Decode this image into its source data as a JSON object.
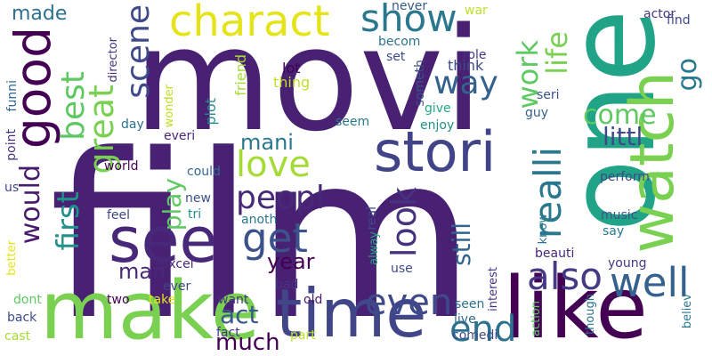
{
  "words": [
    {
      "text": "film",
      "color": "#482173",
      "rotate": 0
    },
    {
      "text": "movi",
      "color": "#482173",
      "rotate": 0
    },
    {
      "text": "one",
      "color": "#20a386",
      "rotate": 90
    },
    {
      "text": "like",
      "color": "#440154",
      "rotate": 0
    },
    {
      "text": "make",
      "color": "#7ad151",
      "rotate": 0
    },
    {
      "text": "time",
      "color": "#404688",
      "rotate": 0
    },
    {
      "text": "see",
      "color": "#482878",
      "rotate": 0
    },
    {
      "text": "watch",
      "color": "#7ad151",
      "rotate": 90
    },
    {
      "text": "good",
      "color": "#440154",
      "rotate": 90
    },
    {
      "text": "stori",
      "color": "#414487",
      "rotate": 0
    },
    {
      "text": "charact",
      "color": "#e5e419",
      "rotate": 0
    },
    {
      "text": "show",
      "color": "#2a788e",
      "rotate": 0
    },
    {
      "text": "love",
      "color": "#a5db36",
      "rotate": 0
    },
    {
      "text": "get",
      "color": "#3b528b",
      "rotate": 0
    },
    {
      "text": "peopl",
      "color": "#482878",
      "rotate": 0
    },
    {
      "text": "even",
      "color": "#3e4a89",
      "rotate": 0
    },
    {
      "text": "great",
      "color": "#7ad151",
      "rotate": 90
    },
    {
      "text": "realli",
      "color": "#2a788e",
      "rotate": 90
    },
    {
      "text": "well",
      "color": "#34618d",
      "rotate": 0
    },
    {
      "text": "also",
      "color": "#443983",
      "rotate": 0
    },
    {
      "text": "would",
      "color": "#481b6d",
      "rotate": 90
    },
    {
      "text": "first",
      "color": "#21918c",
      "rotate": 90
    },
    {
      "text": "look",
      "color": "#46337e",
      "rotate": 90
    },
    {
      "text": "end",
      "color": "#2c728e",
      "rotate": 0
    },
    {
      "text": "come",
      "color": "#5ec962",
      "rotate": 0
    },
    {
      "text": "way",
      "color": "#34618d",
      "rotate": 0
    },
    {
      "text": "scene",
      "color": "#3e4a89",
      "rotate": 90
    },
    {
      "text": "best",
      "color": "#5ec962",
      "rotate": 90
    },
    {
      "text": "work",
      "color": "#5ec962",
      "rotate": 90
    },
    {
      "text": "life",
      "color": "#7ad151",
      "rotate": 90
    },
    {
      "text": "go",
      "color": "#2a788e",
      "rotate": 90
    },
    {
      "text": "play",
      "color": "#5ec962",
      "rotate": 90
    },
    {
      "text": "act",
      "color": "#38598c",
      "rotate": 0
    },
    {
      "text": "much",
      "color": "#440154",
      "rotate": 0
    },
    {
      "text": "year",
      "color": "#440154",
      "rotate": 0
    },
    {
      "text": "man",
      "color": "#482878",
      "rotate": 0
    },
    {
      "text": "mani",
      "color": "#2a788e",
      "rotate": 0
    },
    {
      "text": "littl",
      "color": "#3e4a89",
      "rotate": 0
    },
    {
      "text": "still",
      "color": "#32658e",
      "rotate": 90
    },
    {
      "text": "made",
      "color": "#2c728e",
      "rotate": 0
    },
    {
      "text": "think",
      "color": "#3e4a89",
      "rotate": 0
    },
    {
      "text": "lot",
      "color": "#440154",
      "rotate": 0
    },
    {
      "text": "plot",
      "color": "#23888e",
      "rotate": 90
    },
    {
      "text": "thing",
      "color": "#bddf26",
      "rotate": 0
    },
    {
      "text": "friend",
      "color": "#a5db36",
      "rotate": 90
    },
    {
      "text": "never",
      "color": "#38598c",
      "rotate": 0
    },
    {
      "text": "war",
      "color": "#bddf26",
      "rotate": 0
    },
    {
      "text": "becom",
      "color": "#2c728e",
      "rotate": 0
    },
    {
      "text": "set",
      "color": "#3e4a89",
      "rotate": 0
    },
    {
      "text": "role",
      "color": "#453781",
      "rotate": 0
    },
    {
      "text": "someth",
      "color": "#3b528b",
      "rotate": 90
    },
    {
      "text": "give",
      "color": "#22a884",
      "rotate": 0
    },
    {
      "text": "enjoy",
      "color": "#21918c",
      "rotate": 0
    },
    {
      "text": "seem",
      "color": "#2a788e",
      "rotate": 0
    },
    {
      "text": "guy",
      "color": "#34618d",
      "rotate": 0
    },
    {
      "text": "seri",
      "color": "#3b528b",
      "rotate": 0
    },
    {
      "text": "actor",
      "color": "#453781",
      "rotate": 0
    },
    {
      "text": "find",
      "color": "#404688",
      "rotate": 0
    },
    {
      "text": "director",
      "color": "#46337e",
      "rotate": 90
    },
    {
      "text": "funni",
      "color": "#31688e",
      "rotate": 90
    },
    {
      "text": "point",
      "color": "#46337e",
      "rotate": 90
    },
    {
      "text": "day",
      "color": "#2c728e",
      "rotate": 0
    },
    {
      "text": "wonder",
      "color": "#bddf26",
      "rotate": 90
    },
    {
      "text": "everi",
      "color": "#482878",
      "rotate": 0
    },
    {
      "text": "world",
      "color": "#440154",
      "rotate": 0
    },
    {
      "text": "could",
      "color": "#31688e",
      "rotate": 0
    },
    {
      "text": "us",
      "color": "#414487",
      "rotate": 0
    },
    {
      "text": "new",
      "color": "#3b528b",
      "rotate": 0
    },
    {
      "text": "tri",
      "color": "#21918c",
      "rotate": 0
    },
    {
      "text": "feel",
      "color": "#404688",
      "rotate": 0
    },
    {
      "text": "anoth",
      "color": "#2a788e",
      "rotate": 0
    },
    {
      "text": "real",
      "color": "#3e4a89",
      "rotate": 90
    },
    {
      "text": "alway",
      "color": "#22a884",
      "rotate": 90
    },
    {
      "text": "perform",
      "color": "#3e4a89",
      "rotate": 0
    },
    {
      "text": "music",
      "color": "#3b528b",
      "rotate": 0
    },
    {
      "text": "say",
      "color": "#2a788e",
      "rotate": 0
    },
    {
      "text": "know",
      "color": "#2a788e",
      "rotate": 90
    },
    {
      "text": "beauti",
      "color": "#482878",
      "rotate": 0
    },
    {
      "text": "young",
      "color": "#443983",
      "rotate": 0
    },
    {
      "text": "better",
      "color": "#e5e419",
      "rotate": 90
    },
    {
      "text": "excel",
      "color": "#482878",
      "rotate": 0
    },
    {
      "text": "ever",
      "color": "#404688",
      "rotate": 0
    },
    {
      "text": "bad",
      "color": "#46337e",
      "rotate": 0
    },
    {
      "text": "use",
      "color": "#3e4a89",
      "rotate": 0
    },
    {
      "text": "dont",
      "color": "#5ec962",
      "rotate": 0
    },
    {
      "text": "two",
      "color": "#440154",
      "rotate": 0
    },
    {
      "text": "take",
      "color": "#e5e419",
      "rotate": 0
    },
    {
      "text": "want",
      "color": "#46337e",
      "rotate": 0
    },
    {
      "text": "old",
      "color": "#481b6d",
      "rotate": 0
    },
    {
      "text": "interest",
      "color": "#46337e",
      "rotate": 90
    },
    {
      "text": "seen",
      "color": "#2c728e",
      "rotate": 0
    },
    {
      "text": "live",
      "color": "#31688e",
      "rotate": 0
    },
    {
      "text": "action",
      "color": "#5ec962",
      "rotate": 90
    },
    {
      "text": "though",
      "color": "#2c728e",
      "rotate": 90
    },
    {
      "text": "believ",
      "color": "#2a788e",
      "rotate": 90
    },
    {
      "text": "back",
      "color": "#3e4a89",
      "rotate": 0
    },
    {
      "text": "fact",
      "color": "#453781",
      "rotate": 0
    },
    {
      "text": "part",
      "color": "#bddf26",
      "rotate": 0
    },
    {
      "text": "cast",
      "color": "#a5db36",
      "rotate": 0
    },
    {
      "text": "comedi",
      "color": "#3e4a89",
      "rotate": 0
    }
  ]
}
